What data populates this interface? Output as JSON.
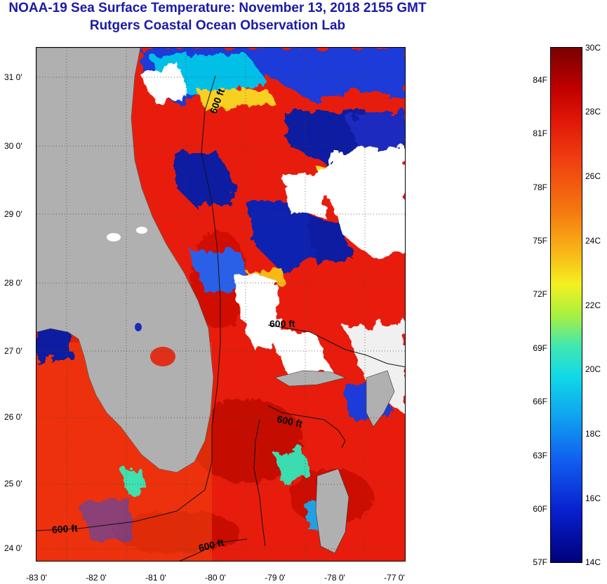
{
  "title": {
    "line1": "NOAA-19 Sea Surface Temperature:  November 13, 2018 2155 GMT",
    "line2": "Rutgers Coastal Ocean Observation Lab"
  },
  "map": {
    "y_axis_labels": [
      "31 0'",
      "30 0'",
      "29 0'",
      "28 0'",
      "27 0'",
      "26 0'",
      "25 0'",
      "24 0'"
    ],
    "x_axis_labels": [
      "-83 0'",
      "-82 0'",
      "-81 0'",
      "-80 0'",
      "-79 0'",
      "-78 0'",
      "-77 0'"
    ],
    "lat_range": [
      23.8,
      31.5
    ],
    "lon_range": [
      -83.0,
      -76.8
    ],
    "contour_labels": [
      "600 ft",
      "600 ft",
      "600 ft",
      "600 ft",
      "600 ft"
    ],
    "colors": {
      "land": "#b0b0b0",
      "cloud": "#ffffff",
      "warm_water": "#e81c0c",
      "cool_water": "#001a9e"
    }
  },
  "colorbar": {
    "fahrenheit_labels": [
      "84F",
      "81F",
      "78F",
      "75F",
      "72F",
      "69F",
      "66F",
      "63F",
      "60F",
      "57F"
    ],
    "celsius_labels": [
      "30C",
      "28C",
      "26C",
      "24C",
      "22C",
      "20C",
      "18C",
      "16C",
      "14C"
    ],
    "range_c": [
      14,
      30
    ]
  }
}
